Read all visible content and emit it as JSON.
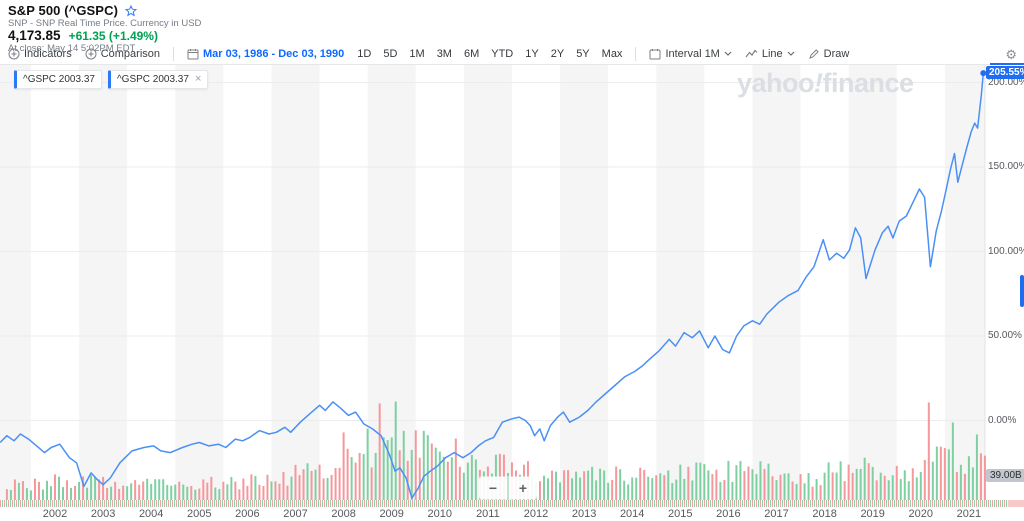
{
  "header": {
    "title": "S&P 500 (^GSPC)",
    "subtitle": "SNP - SNP Real Time Price. Currency in USD",
    "price": "4,173.85",
    "change": "+61.35 (+1.49%)",
    "at_close": "At close: May 14 5:02PM EDT"
  },
  "toolbar": {
    "indicators_label": "Indicators",
    "comparison_label": "Comparison",
    "date_range": "Mar 03, 1986 - Dec 03, 1990",
    "ranges": [
      "1D",
      "5D",
      "1M",
      "3M",
      "6M",
      "YTD",
      "1Y",
      "2Y",
      "5Y",
      "Max"
    ],
    "interval_label": "Interval 1M",
    "chart_type_label": "Line",
    "draw_label": "Draw",
    "gear_icon": "gear"
  },
  "legend": {
    "chips": [
      {
        "label": "^GSPC 2003.37",
        "closable": false
      },
      {
        "label": "^GSPC 2003.37",
        "closable": true
      }
    ]
  },
  "watermark": {
    "part1": "yahoo",
    "bang": "!",
    "part2": "finance"
  },
  "controls": {
    "zoom_out": "−",
    "zoom_in": "+"
  },
  "colors": {
    "accent_blue": "#1f6ef2",
    "line_blue": "#4a90f4",
    "up_green": "#7fd0a1",
    "down_red": "#f5989c",
    "change_green": "#00a152",
    "band_gray": "#f5f5f6",
    "grid_gray": "#ececec"
  },
  "chart_data": {
    "type": "line",
    "title": "S&P 500 (^GSPC) percent change, monthly, ~2001-2021",
    "legend_position": "top-left",
    "grid": true,
    "x_axis": {
      "ticks": [
        2002,
        2003,
        2004,
        2005,
        2006,
        2007,
        2008,
        2009,
        2010,
        2011,
        2012,
        2013,
        2014,
        2015,
        2016,
        2017,
        2018,
        2019,
        2020,
        2021
      ]
    },
    "y_axis": {
      "unit": "%",
      "tick_labels": [
        "200.00%",
        "150.00%",
        "100.00%",
        "50.00%",
        "0.00%"
      ],
      "tick_values": [
        200,
        150,
        100,
        50,
        0
      ],
      "range": [
        -50,
        210
      ]
    },
    "last_value_label": "205.55%",
    "series": [
      {
        "name": "^GSPC",
        "unit": "percent change",
        "points": [
          [
            2000.86,
            -13
          ],
          [
            2001.0,
            -9
          ],
          [
            2001.15,
            -12
          ],
          [
            2001.28,
            -8
          ],
          [
            2001.45,
            -11
          ],
          [
            2001.62,
            -15
          ],
          [
            2001.78,
            -19
          ],
          [
            2001.92,
            -16
          ],
          [
            2002.1,
            -14
          ],
          [
            2002.3,
            -22
          ],
          [
            2002.45,
            -25
          ],
          [
            2002.6,
            -39
          ],
          [
            2002.75,
            -31
          ],
          [
            2002.88,
            -35
          ],
          [
            2003.0,
            -38
          ],
          [
            2003.15,
            -34
          ],
          [
            2003.35,
            -25
          ],
          [
            2003.6,
            -18
          ],
          [
            2003.85,
            -16
          ],
          [
            2004.05,
            -15
          ],
          [
            2004.2,
            -18
          ],
          [
            2004.4,
            -19
          ],
          [
            2004.65,
            -16
          ],
          [
            2004.85,
            -14
          ],
          [
            2005.0,
            -13
          ],
          [
            2005.2,
            -15
          ],
          [
            2005.4,
            -14
          ],
          [
            2005.55,
            -16
          ],
          [
            2005.75,
            -11
          ],
          [
            2005.9,
            -12
          ],
          [
            2006.05,
            -10
          ],
          [
            2006.25,
            -6
          ],
          [
            2006.45,
            -8
          ],
          [
            2006.6,
            -7
          ],
          [
            2006.78,
            -4
          ],
          [
            2006.9,
            -7
          ],
          [
            2007.1,
            -1
          ],
          [
            2007.3,
            4
          ],
          [
            2007.5,
            9
          ],
          [
            2007.62,
            6
          ],
          [
            2007.78,
            11
          ],
          [
            2007.95,
            7
          ],
          [
            2008.1,
            3
          ],
          [
            2008.25,
            5
          ],
          [
            2008.42,
            -2
          ],
          [
            2008.6,
            -5
          ],
          [
            2008.78,
            -9
          ],
          [
            2008.95,
            -20
          ],
          [
            2009.07,
            -30
          ],
          [
            2009.17,
            -28
          ],
          [
            2009.3,
            -34
          ],
          [
            2009.42,
            -46
          ],
          [
            2009.55,
            -40
          ],
          [
            2009.67,
            -33
          ],
          [
            2009.8,
            -30
          ],
          [
            2009.95,
            -27
          ],
          [
            2010.12,
            -22
          ],
          [
            2010.3,
            -19
          ],
          [
            2010.48,
            -22
          ],
          [
            2010.65,
            -19
          ],
          [
            2010.8,
            -15
          ],
          [
            2010.95,
            -12
          ],
          [
            2011.12,
            -10
          ],
          [
            2011.3,
            -1
          ],
          [
            2011.5,
            1
          ],
          [
            2011.65,
            2
          ],
          [
            2011.78,
            0
          ],
          [
            2011.88,
            -3
          ],
          [
            2011.97,
            -9
          ],
          [
            2012.08,
            -5
          ],
          [
            2012.17,
            -12
          ],
          [
            2012.3,
            -3
          ],
          [
            2012.45,
            2
          ],
          [
            2012.57,
            5
          ],
          [
            2012.7,
            -1
          ],
          [
            2012.9,
            2
          ],
          [
            2013.08,
            6
          ],
          [
            2013.25,
            11
          ],
          [
            2013.45,
            16
          ],
          [
            2013.65,
            21
          ],
          [
            2013.85,
            26
          ],
          [
            2014.05,
            29
          ],
          [
            2014.2,
            32
          ],
          [
            2014.35,
            36
          ],
          [
            2014.55,
            41
          ],
          [
            2014.77,
            48
          ],
          [
            2014.9,
            44
          ],
          [
            2015.08,
            52
          ],
          [
            2015.25,
            49
          ],
          [
            2015.4,
            53
          ],
          [
            2015.58,
            43
          ],
          [
            2015.72,
            50
          ],
          [
            2015.88,
            42
          ],
          [
            2016.02,
            40
          ],
          [
            2016.17,
            50
          ],
          [
            2016.32,
            56
          ],
          [
            2016.5,
            59
          ],
          [
            2016.65,
            57
          ],
          [
            2016.8,
            63
          ],
          [
            2017.05,
            70
          ],
          [
            2017.25,
            74
          ],
          [
            2017.45,
            77
          ],
          [
            2017.62,
            85
          ],
          [
            2017.78,
            91
          ],
          [
            2017.97,
            107
          ],
          [
            2018.1,
            95
          ],
          [
            2018.25,
            99
          ],
          [
            2018.4,
            96
          ],
          [
            2018.52,
            101
          ],
          [
            2018.64,
            114
          ],
          [
            2018.75,
            108
          ],
          [
            2018.86,
            84
          ],
          [
            2019.05,
            101
          ],
          [
            2019.2,
            111
          ],
          [
            2019.32,
            115
          ],
          [
            2019.42,
            108
          ],
          [
            2019.55,
            118
          ],
          [
            2019.7,
            121
          ],
          [
            2019.82,
            128
          ],
          [
            2019.97,
            137
          ],
          [
            2020.08,
            132
          ],
          [
            2020.2,
            91
          ],
          [
            2020.32,
            112
          ],
          [
            2020.43,
            124
          ],
          [
            2020.53,
            137
          ],
          [
            2020.62,
            149
          ],
          [
            2020.7,
            158
          ],
          [
            2020.77,
            141
          ],
          [
            2020.87,
            152
          ],
          [
            2020.97,
            163
          ],
          [
            2021.05,
            171
          ],
          [
            2021.12,
            176
          ],
          [
            2021.18,
            173
          ],
          [
            2021.26,
            193
          ],
          [
            2021.3,
            205.55
          ]
        ]
      }
    ],
    "volume": {
      "interval": "1M",
      "right_axis_badge": "39.00B",
      "note": "relative monthly volume bar levels by year (pixel heights), colored up/down",
      "year_levels": [
        [
          2001,
          22
        ],
        [
          2002,
          27
        ],
        [
          2003,
          25
        ],
        [
          2004,
          22
        ],
        [
          2005,
          24
        ],
        [
          2006,
          29
        ],
        [
          2007,
          40
        ],
        [
          2008,
          72
        ],
        [
          2009,
          74
        ],
        [
          2010,
          52
        ],
        [
          2011,
          47
        ],
        [
          2012,
          37
        ],
        [
          2013,
          35
        ],
        [
          2014,
          34
        ],
        [
          2015,
          39
        ],
        [
          2016,
          41
        ],
        [
          2017,
          29
        ],
        [
          2018,
          43
        ],
        [
          2019,
          36
        ],
        [
          2020,
          58
        ],
        [
          2021,
          52
        ]
      ],
      "spikes": [
        [
          2008.79,
          97,
          "down"
        ],
        [
          2009.12,
          99,
          "up"
        ],
        [
          2010.37,
          62,
          "down"
        ],
        [
          2020.18,
          98,
          "down"
        ],
        [
          2020.65,
          78,
          "up"
        ],
        [
          2021.2,
          66,
          "up"
        ]
      ]
    }
  }
}
